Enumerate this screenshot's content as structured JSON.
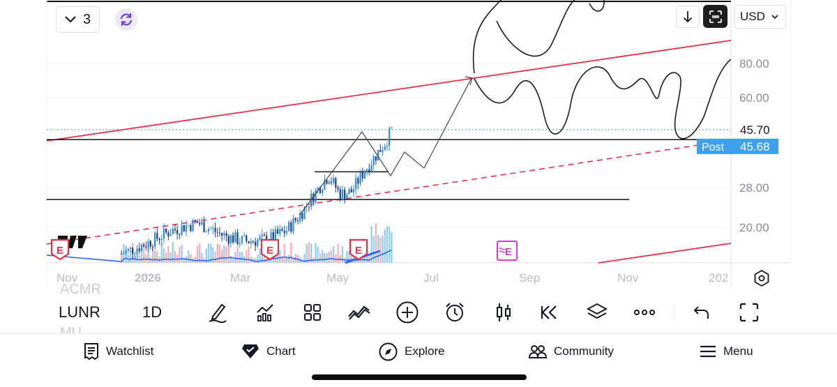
{
  "header": {
    "layout_count": "3",
    "currency": "USD"
  },
  "chart_data": {
    "type": "candlestick",
    "symbol": "LUNR",
    "interval": "1D",
    "x_tick_labels": [
      "Nov",
      "2026",
      "Mar",
      "May",
      "Jul",
      "Sep",
      "Nov",
      "202"
    ],
    "y_tick_labels": [
      "80.00",
      "60.00",
      "28.00",
      "20.00"
    ],
    "y_scale": "log",
    "last_price": {
      "label": "",
      "value": "45.70"
    },
    "post_market": {
      "label": "Post",
      "value": "45.68"
    },
    "colors": {
      "up": "#2f88d8",
      "down": "#1f3d7a",
      "volume_up": "#7fc3ec",
      "volume_down": "#f4a0a8",
      "ma": "#2962ff",
      "trendline": "#e0334b",
      "drawing": "#1a1a1a"
    },
    "earnings_markers": [
      "E",
      "E",
      "E",
      "E"
    ],
    "price_series": [
      {
        "date": "2025-12-20",
        "close": 16.0
      },
      {
        "date": "2026-01-05",
        "close": 17.5
      },
      {
        "date": "2026-01-20",
        "close": 19.5
      },
      {
        "date": "2026-02-05",
        "close": 20.8
      },
      {
        "date": "2026-02-20",
        "close": 18.8
      },
      {
        "date": "2026-03-05",
        "close": 17.8
      },
      {
        "date": "2026-03-20",
        "close": 18.0
      },
      {
        "date": "2026-04-01",
        "close": 19.5
      },
      {
        "date": "2026-04-10",
        "close": 22.5
      },
      {
        "date": "2026-04-20",
        "close": 27.5
      },
      {
        "date": "2026-04-27",
        "close": 31.0
      },
      {
        "date": "2026-05-04",
        "close": 26.5
      },
      {
        "date": "2026-05-11",
        "close": 27.0
      },
      {
        "date": "2026-05-18",
        "close": 31.5
      },
      {
        "date": "2026-05-25",
        "close": 36.0
      },
      {
        "date": "2026-06-01",
        "close": 41.0
      },
      {
        "date": "2026-06-05",
        "close": 45.7
      }
    ],
    "horizontal_levels": [
      42.0,
      32.0,
      25.3
    ]
  },
  "toolbar": {
    "symbol": "LUNR",
    "interval": "1D",
    "background_symbols": [
      "ACMR",
      "MU"
    ],
    "tools": [
      "pen-icon",
      "indicators-icon",
      "templates-icon",
      "drawings-icon",
      "add-icon",
      "alert-icon",
      "candles-icon",
      "replay-icon",
      "layers-icon",
      "more-icon",
      "undo-icon",
      "fullscreen-icon"
    ]
  },
  "bottom_nav": {
    "items": [
      {
        "icon": "watchlist-icon",
        "label": "Watchlist"
      },
      {
        "icon": "chart-icon",
        "label": "Chart"
      },
      {
        "icon": "explore-icon",
        "label": "Explore"
      },
      {
        "icon": "community-icon",
        "label": "Community"
      },
      {
        "icon": "menu-icon",
        "label": "Menu"
      }
    ]
  }
}
